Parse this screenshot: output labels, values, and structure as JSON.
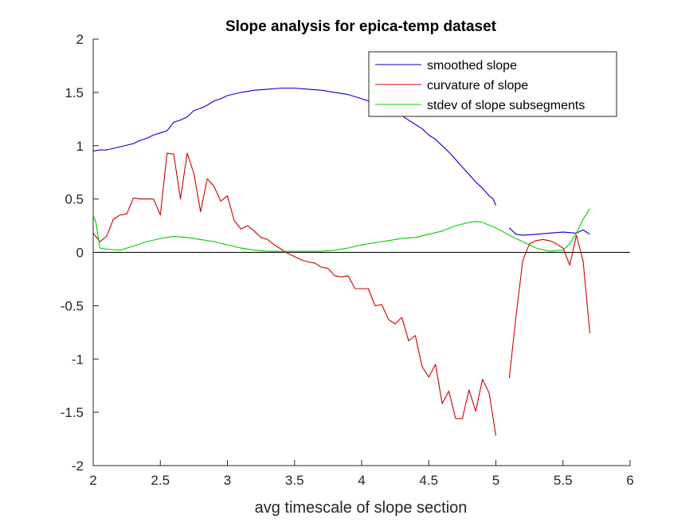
{
  "chart_data": {
    "type": "line",
    "title": "Slope analysis for epica-temp dataset",
    "xlabel": "avg timescale of slope section",
    "ylabel": "",
    "xlim": [
      2,
      6
    ],
    "ylim": [
      -2,
      2
    ],
    "xticks": [
      "2",
      "2.5",
      "3",
      "3.5",
      "4",
      "4.5",
      "5",
      "5.5",
      "6"
    ],
    "yticks": [
      "2",
      "1.5",
      "1",
      "0.5",
      "0",
      "-0.5",
      "-1",
      "-1.5",
      "-2"
    ],
    "zero_line": true,
    "grid": false,
    "legend_position": "top-right",
    "series": [
      {
        "name": "smoothed slope",
        "color": "#0000cc",
        "segments": [
          [
            [
              2.0,
              0.95
            ],
            [
              2.05,
              0.96
            ],
            [
              2.1,
              0.96
            ],
            [
              2.2,
              0.99
            ],
            [
              2.3,
              1.02
            ],
            [
              2.35,
              1.05
            ],
            [
              2.4,
              1.07
            ],
            [
              2.45,
              1.1
            ],
            [
              2.5,
              1.12
            ],
            [
              2.55,
              1.14
            ],
            [
              2.6,
              1.22
            ],
            [
              2.65,
              1.24
            ],
            [
              2.7,
              1.27
            ],
            [
              2.75,
              1.33
            ],
            [
              2.8,
              1.35
            ],
            [
              2.85,
              1.38
            ],
            [
              2.9,
              1.42
            ],
            [
              2.95,
              1.44
            ],
            [
              3.0,
              1.47
            ],
            [
              3.1,
              1.5
            ],
            [
              3.2,
              1.52
            ],
            [
              3.3,
              1.53
            ],
            [
              3.4,
              1.54
            ],
            [
              3.5,
              1.54
            ],
            [
              3.6,
              1.53
            ],
            [
              3.7,
              1.52
            ],
            [
              3.8,
              1.5
            ],
            [
              3.9,
              1.48
            ],
            [
              4.0,
              1.44
            ],
            [
              4.1,
              1.4
            ],
            [
              4.2,
              1.35
            ],
            [
              4.3,
              1.28
            ],
            [
              4.4,
              1.2
            ],
            [
              4.45,
              1.16
            ],
            [
              4.5,
              1.1
            ],
            [
              4.55,
              1.06
            ],
            [
              4.6,
              1.0
            ],
            [
              4.65,
              0.94
            ],
            [
              4.7,
              0.87
            ],
            [
              4.75,
              0.8
            ],
            [
              4.8,
              0.73
            ],
            [
              4.85,
              0.66
            ],
            [
              4.9,
              0.6
            ],
            [
              4.95,
              0.53
            ],
            [
              4.98,
              0.5
            ],
            [
              5.0,
              0.44
            ]
          ],
          [
            [
              5.1,
              0.23
            ],
            [
              5.15,
              0.17
            ],
            [
              5.2,
              0.16
            ],
            [
              5.3,
              0.17
            ],
            [
              5.4,
              0.18
            ],
            [
              5.5,
              0.19
            ],
            [
              5.6,
              0.18
            ],
            [
              5.65,
              0.21
            ],
            [
              5.7,
              0.17
            ]
          ]
        ]
      },
      {
        "name": "curvature of slope",
        "color": "#cc0000",
        "segments": [
          [
            [
              2.0,
              0.18
            ],
            [
              2.05,
              0.1
            ],
            [
              2.1,
              0.15
            ],
            [
              2.15,
              0.31
            ],
            [
              2.2,
              0.35
            ],
            [
              2.25,
              0.36
            ],
            [
              2.3,
              0.51
            ],
            [
              2.35,
              0.5
            ],
            [
              2.4,
              0.5
            ],
            [
              2.45,
              0.5
            ],
            [
              2.5,
              0.35
            ],
            [
              2.55,
              0.93
            ],
            [
              2.6,
              0.92
            ],
            [
              2.65,
              0.5
            ],
            [
              2.7,
              0.93
            ],
            [
              2.75,
              0.74
            ],
            [
              2.8,
              0.38
            ],
            [
              2.85,
              0.69
            ],
            [
              2.9,
              0.62
            ],
            [
              2.95,
              0.48
            ],
            [
              3.0,
              0.53
            ],
            [
              3.05,
              0.3
            ],
            [
              3.1,
              0.22
            ],
            [
              3.15,
              0.25
            ],
            [
              3.2,
              0.2
            ],
            [
              3.25,
              0.14
            ],
            [
              3.3,
              0.12
            ],
            [
              3.35,
              0.07
            ],
            [
              3.4,
              0.03
            ],
            [
              3.45,
              -0.01
            ],
            [
              3.5,
              -0.04
            ],
            [
              3.55,
              -0.07
            ],
            [
              3.6,
              -0.09
            ],
            [
              3.65,
              -0.1
            ],
            [
              3.7,
              -0.14
            ],
            [
              3.75,
              -0.15
            ],
            [
              3.8,
              -0.22
            ],
            [
              3.85,
              -0.23
            ],
            [
              3.9,
              -0.22
            ],
            [
              3.95,
              -0.34
            ],
            [
              4.0,
              -0.34
            ],
            [
              4.05,
              -0.34
            ],
            [
              4.1,
              -0.5
            ],
            [
              4.15,
              -0.49
            ],
            [
              4.2,
              -0.63
            ],
            [
              4.25,
              -0.67
            ],
            [
              4.3,
              -0.61
            ],
            [
              4.35,
              -0.83
            ],
            [
              4.4,
              -0.78
            ],
            [
              4.45,
              -1.07
            ],
            [
              4.5,
              -1.17
            ],
            [
              4.55,
              -1.05
            ],
            [
              4.6,
              -1.42
            ],
            [
              4.65,
              -1.3
            ],
            [
              4.7,
              -1.56
            ],
            [
              4.75,
              -1.56
            ],
            [
              4.8,
              -1.29
            ],
            [
              4.85,
              -1.49
            ],
            [
              4.9,
              -1.19
            ],
            [
              4.95,
              -1.32
            ],
            [
              5.0,
              -1.72
            ]
          ],
          [
            [
              5.1,
              -1.18
            ],
            [
              5.15,
              -0.6
            ],
            [
              5.2,
              -0.08
            ],
            [
              5.25,
              0.08
            ],
            [
              5.3,
              0.11
            ],
            [
              5.35,
              0.12
            ],
            [
              5.4,
              0.11
            ],
            [
              5.45,
              0.08
            ],
            [
              5.5,
              0.04
            ],
            [
              5.55,
              -0.12
            ],
            [
              5.6,
              0.16
            ],
            [
              5.65,
              -0.08
            ],
            [
              5.7,
              -0.76
            ]
          ]
        ]
      },
      {
        "name": "stdev of slope subsegments",
        "color": "#00cc00",
        "segments": [
          [
            [
              2.0,
              0.35
            ],
            [
              2.02,
              0.28
            ],
            [
              2.05,
              0.04
            ],
            [
              2.1,
              0.03
            ],
            [
              2.2,
              0.02
            ],
            [
              2.3,
              0.06
            ],
            [
              2.4,
              0.1
            ],
            [
              2.5,
              0.13
            ],
            [
              2.6,
              0.15
            ],
            [
              2.7,
              0.14
            ],
            [
              2.8,
              0.12
            ],
            [
              2.9,
              0.1
            ],
            [
              3.0,
              0.07
            ],
            [
              3.1,
              0.04
            ],
            [
              3.2,
              0.02
            ],
            [
              3.3,
              0.01
            ],
            [
              3.4,
              0.01
            ],
            [
              3.5,
              0.01
            ],
            [
              3.6,
              0.01
            ],
            [
              3.7,
              0.01
            ],
            [
              3.8,
              0.02
            ],
            [
              3.9,
              0.04
            ],
            [
              4.0,
              0.07
            ],
            [
              4.1,
              0.09
            ],
            [
              4.2,
              0.11
            ],
            [
              4.3,
              0.13
            ],
            [
              4.4,
              0.14
            ],
            [
              4.5,
              0.17
            ],
            [
              4.6,
              0.2
            ],
            [
              4.7,
              0.25
            ],
            [
              4.8,
              0.28
            ],
            [
              4.85,
              0.29
            ],
            [
              4.9,
              0.28
            ],
            [
              5.0,
              0.23
            ],
            [
              5.1,
              0.16
            ],
            [
              5.2,
              0.1
            ],
            [
              5.3,
              0.04
            ],
            [
              5.4,
              0.01
            ],
            [
              5.5,
              0.02
            ],
            [
              5.55,
              0.08
            ],
            [
              5.6,
              0.18
            ],
            [
              5.65,
              0.31
            ],
            [
              5.7,
              0.41
            ]
          ]
        ]
      }
    ]
  }
}
